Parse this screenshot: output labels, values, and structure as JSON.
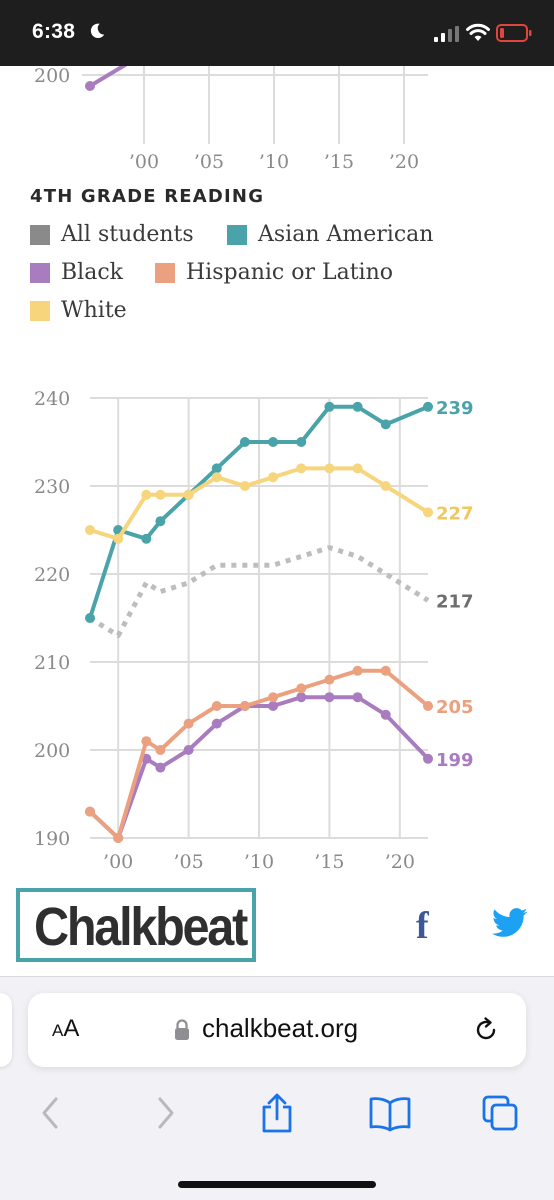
{
  "status_bar": {
    "time": "6:38"
  },
  "previous_chart": {
    "y_tick_visible": "200",
    "x_ticks": [
      "’00",
      "’05",
      "’10",
      "’15",
      "’20"
    ]
  },
  "chart_title": "4TH GRADE READING",
  "legend": [
    {
      "label": "All students",
      "color": "#8a8a8a"
    },
    {
      "label": "Asian American",
      "color": "#4aa3a9"
    },
    {
      "label": "Black",
      "color": "#a97bbf"
    },
    {
      "label": "Hispanic or Latino",
      "color": "#eba07f"
    },
    {
      "label": "White",
      "color": "#f6d57d"
    }
  ],
  "chart_data": {
    "type": "line",
    "title": "4TH GRADE READING",
    "xlabel": "",
    "ylabel": "",
    "x_tick_labels": [
      "’00",
      "’05",
      "’10",
      "’15",
      "’20"
    ],
    "x_ticks": [
      2000,
      2005,
      2010,
      2015,
      2020
    ],
    "y_ticks": [
      190,
      200,
      210,
      220,
      230,
      240
    ],
    "xlim": [
      1998,
      2022
    ],
    "ylim": [
      190,
      240
    ],
    "grid": true,
    "legend_position": "top",
    "x": [
      1998,
      2000,
      2002,
      2003,
      2005,
      2007,
      2009,
      2011,
      2013,
      2015,
      2017,
      2019,
      2022
    ],
    "series": [
      {
        "name": "All students",
        "color": "#bdbdbd",
        "label_color": "#6e6e6e",
        "end_label": "217",
        "dotted": true,
        "markers": false,
        "values": [
          215,
          213,
          219,
          218,
          219,
          221,
          221,
          221,
          222,
          223,
          222,
          220,
          217
        ]
      },
      {
        "name": "Asian American",
        "color": "#4aa3a9",
        "label_color": "#4aa3a9",
        "end_label": "239",
        "dotted": false,
        "markers": true,
        "values": [
          215,
          225,
          224,
          226,
          229,
          232,
          235,
          235,
          235,
          239,
          239,
          237,
          239
        ]
      },
      {
        "name": "Black",
        "color": "#a97bbf",
        "label_color": "#a97bbf",
        "end_label": "199",
        "dotted": false,
        "markers": true,
        "values": [
          193,
          190,
          199,
          198,
          200,
          203,
          205,
          205,
          206,
          206,
          206,
          204,
          199
        ]
      },
      {
        "name": "Hispanic or Latino",
        "color": "#eba07f",
        "label_color": "#eba07f",
        "end_label": "205",
        "dotted": false,
        "markers": true,
        "values": [
          193,
          190,
          201,
          200,
          203,
          205,
          205,
          206,
          207,
          208,
          209,
          209,
          205
        ]
      },
      {
        "name": "White",
        "color": "#f6d57d",
        "label_color": "#f0c75a",
        "end_label": "227",
        "dotted": false,
        "markers": true,
        "values": [
          225,
          224,
          229,
          229,
          229,
          231,
          230,
          231,
          232,
          232,
          232,
          230,
          227
        ]
      }
    ]
  },
  "footer": {
    "logo": "Chalkbeat"
  },
  "browser": {
    "aa_small": "A",
    "aa_big": "A",
    "url": "chalkbeat.org"
  }
}
